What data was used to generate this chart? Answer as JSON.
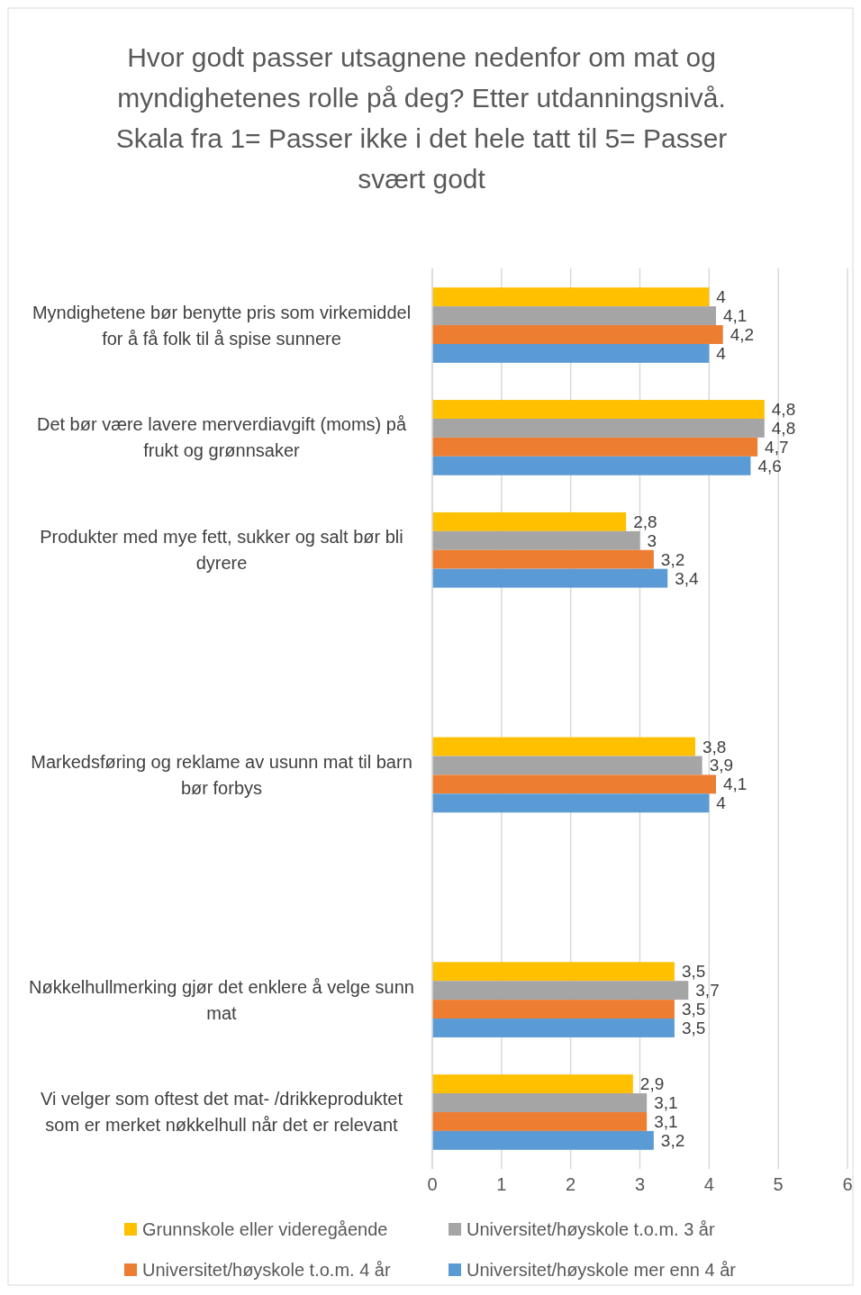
{
  "chart_data": {
    "type": "bar",
    "orientation": "horizontal",
    "title": "Hvor godt passer utsagnene nedenfor om mat og myndighetenes rolle på deg? Etter utdanningsnivå.",
    "subtitle": "Skala fra 1= Passer ikke i det hele tatt til 5= Passer svært godt",
    "categories": [
      "Myndighetene bør benytte pris som virkemiddel for å få folk til å spise sunnere",
      "Det bør være lavere merverdiavgift (moms) på frukt og grønnsaker",
      "Produkter med mye fett, sukker og salt bør bli dyrere",
      null,
      "Markedsføring og reklame av usunn mat til barn bør forbys",
      null,
      "Nøkkelhullmerking gjør det enklere å velge sunn mat",
      "Vi velger som oftest det mat- /drikkeproduktet som er merket nøkkelhull når det er relevant"
    ],
    "series": [
      {
        "name": "Grunnskole eller videregående",
        "color": "#ffc000",
        "values": [
          4,
          4.8,
          2.8,
          null,
          3.8,
          null,
          3.5,
          2.9
        ],
        "value_labels": [
          "4",
          "4,8",
          "2,8",
          null,
          "3,8",
          null,
          "3,5",
          "2,9"
        ]
      },
      {
        "name": "Universitet/høyskole t.o.m. 3 år",
        "color": "#a5a5a5",
        "values": [
          4.1,
          4.8,
          3,
          null,
          3.9,
          null,
          3.7,
          3.1
        ],
        "value_labels": [
          "4,1",
          "4,8",
          "3",
          null,
          "3,9",
          null,
          "3,7",
          "3,1"
        ]
      },
      {
        "name": "Universitet/høyskole t.o.m. 4 år",
        "color": "#ed7d31",
        "values": [
          4.2,
          4.7,
          3.2,
          null,
          4.1,
          null,
          3.5,
          3.1
        ],
        "value_labels": [
          "4,2",
          "4,7",
          "3,2",
          null,
          "4,1",
          null,
          "3,5",
          "3,1"
        ]
      },
      {
        "name": "Universitet/høyskole mer enn 4 år",
        "color": "#5b9bd5",
        "values": [
          4,
          4.6,
          3.4,
          null,
          4,
          null,
          3.5,
          3.2
        ],
        "value_labels": [
          "4",
          "4,6",
          "3,4",
          null,
          "4",
          null,
          "3,5",
          "3,2"
        ]
      }
    ],
    "xlim": [
      0,
      6
    ],
    "xticks": [
      0,
      1,
      2,
      3,
      4,
      5,
      6
    ],
    "grid": "x",
    "legend": "bottom"
  }
}
